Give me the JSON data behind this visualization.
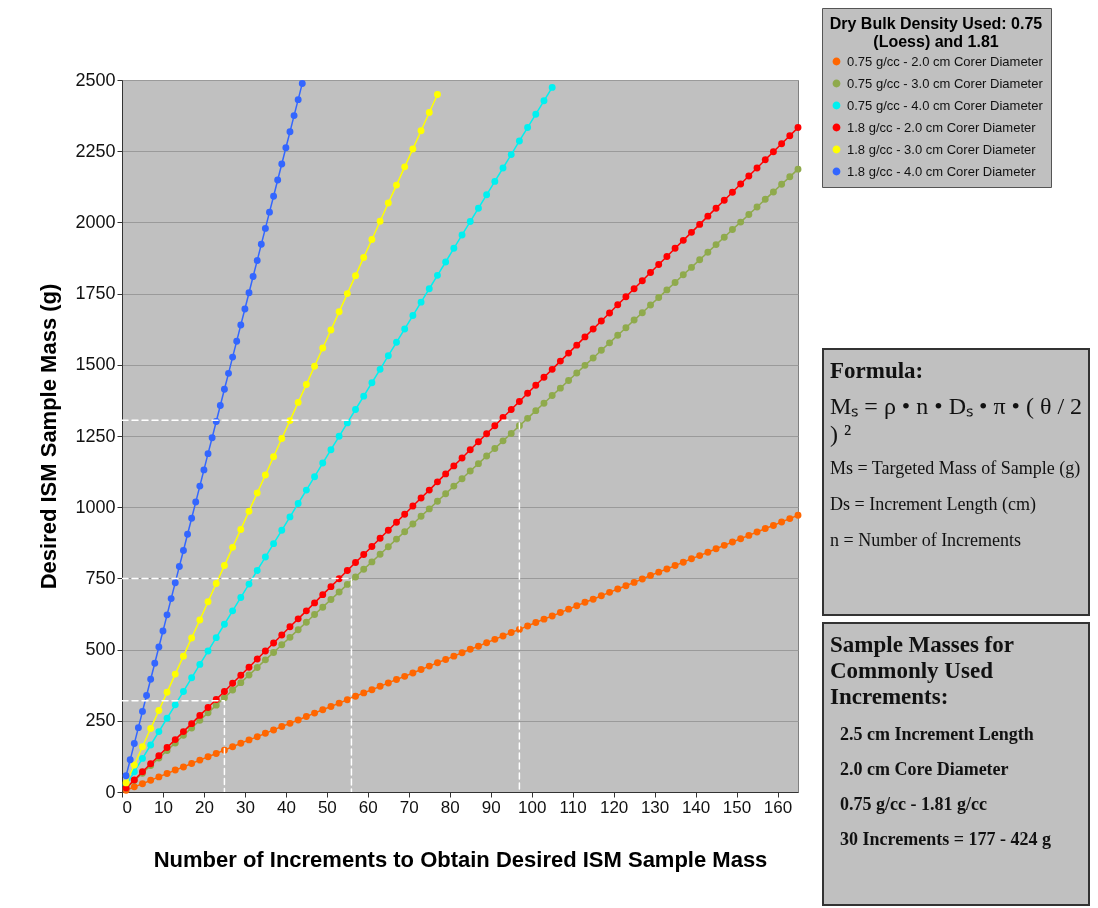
{
  "chart_data": {
    "type": "line",
    "xlabel": "Number of Increments to Obtain Desired ISM Sample Mass",
    "ylabel": "Desired ISM Sample Mass (g)",
    "legend_title": "Dry Bulk Density Used: 0.75 (Loess) and 1.81",
    "xlim": [
      0,
      165
    ],
    "xticks": [
      0,
      10,
      20,
      30,
      40,
      50,
      60,
      70,
      80,
      90,
      100,
      110,
      120,
      130,
      140,
      150,
      160
    ],
    "ylim": [
      0,
      2500
    ],
    "yticks": [
      0,
      250,
      500,
      750,
      1000,
      1250,
      1500,
      1750,
      2000,
      2250,
      2500
    ],
    "grid": "y",
    "legend": "right",
    "line_style": "solid",
    "series": [
      {
        "name": "0.75 g/cc - 2.0 cm Corer Diameter",
        "color": "#ff6600",
        "marker": "circle",
        "x": [
          1,
          3,
          5,
          7,
          9,
          11,
          13,
          15,
          17,
          19,
          21,
          23,
          25,
          27,
          29,
          31,
          33,
          35,
          37,
          39,
          41,
          43,
          45,
          47,
          49,
          51,
          53,
          55,
          57,
          59,
          61,
          63,
          65,
          67,
          69,
          71,
          73,
          75,
          77,
          79,
          81,
          83,
          85,
          87,
          89,
          91,
          93,
          95,
          97,
          99,
          101,
          103,
          105,
          107,
          109,
          111,
          113,
          115,
          117,
          119,
          121,
          123,
          125,
          127,
          129,
          131,
          133,
          135,
          137,
          139,
          141,
          143,
          145,
          147,
          149,
          151,
          153,
          155,
          157,
          159,
          161,
          163,
          165
        ],
        "values": [
          6,
          18,
          29,
          41,
          53,
          65,
          77,
          88,
          100,
          112,
          124,
          135,
          147,
          159,
          171,
          183,
          194,
          206,
          218,
          230,
          241,
          253,
          265,
          277,
          289,
          300,
          312,
          324,
          336,
          348,
          359,
          371,
          383,
          395,
          406,
          418,
          430,
          442,
          454,
          465,
          477,
          489,
          501,
          512,
          524,
          536,
          548,
          560,
          571,
          583,
          595,
          607,
          618,
          630,
          642,
          654,
          666,
          677,
          689,
          701,
          713,
          724,
          736,
          748,
          760,
          772,
          783,
          795,
          807,
          819,
          830,
          842,
          854,
          866,
          878,
          889,
          901,
          913,
          925,
          936,
          948,
          960,
          972
        ]
      },
      {
        "name": "0.75 g/cc - 3.0 cm Corer Diameter",
        "color": "#8faa4c",
        "marker": "circle",
        "x": [
          1,
          3,
          5,
          7,
          9,
          11,
          13,
          15,
          17,
          19,
          21,
          23,
          25,
          27,
          29,
          31,
          33,
          35,
          37,
          39,
          41,
          43,
          45,
          47,
          49,
          51,
          53,
          55,
          57,
          59,
          61,
          63,
          65,
          67,
          69,
          71,
          73,
          75,
          77,
          79,
          81,
          83,
          85,
          87,
          89,
          91,
          93,
          95,
          97,
          99,
          101,
          103,
          105,
          107,
          109,
          111,
          113,
          115,
          117,
          119,
          121,
          123,
          125,
          127,
          129,
          131,
          133,
          135,
          137,
          139,
          141,
          143,
          145,
          147,
          149,
          151,
          153,
          155,
          157,
          159,
          161,
          163,
          165
        ],
        "values": [
          13,
          40,
          66,
          93,
          119,
          146,
          172,
          199,
          225,
          252,
          278,
          305,
          331,
          358,
          384,
          411,
          437,
          464,
          490,
          517,
          543,
          570,
          596,
          623,
          649,
          676,
          702,
          729,
          755,
          782,
          808,
          835,
          861,
          888,
          914,
          941,
          968,
          994,
          1021,
          1047,
          1074,
          1100,
          1127,
          1153,
          1180,
          1206,
          1233,
          1259,
          1286,
          1312,
          1339,
          1365,
          1392,
          1418,
          1445,
          1471,
          1498,
          1524,
          1551,
          1577,
          1604,
          1630,
          1657,
          1683,
          1710,
          1736,
          1763,
          1789,
          1816,
          1842,
          1869,
          1895,
          1922,
          1948,
          1975,
          2001,
          2028,
          2054,
          2081,
          2107,
          2134,
          2160,
          2187
        ]
      },
      {
        "name": "0.75 g/cc - 4.0 cm Corer Diameter",
        "color": "#00f0f0",
        "marker": "circle",
        "x": [
          1,
          3,
          5,
          7,
          9,
          11,
          13,
          15,
          17,
          19,
          21,
          23,
          25,
          27,
          29,
          31,
          33,
          35,
          37,
          39,
          41,
          43,
          45,
          47,
          49,
          51,
          53,
          55,
          57,
          59,
          61,
          63,
          65,
          67,
          69,
          71,
          73,
          75,
          77,
          79,
          81,
          83,
          85,
          87,
          89,
          91,
          93,
          95,
          97,
          99,
          101,
          103,
          105
        ],
        "values": [
          24,
          71,
          118,
          165,
          212,
          259,
          306,
          353,
          401,
          448,
          495,
          542,
          589,
          636,
          683,
          730,
          778,
          825,
          872,
          919,
          966,
          1013,
          1060,
          1107,
          1155,
          1202,
          1249,
          1296,
          1343,
          1390,
          1437,
          1484,
          1532,
          1579,
          1626,
          1673,
          1720,
          1767,
          1814,
          1861,
          1909,
          1956,
          2003,
          2050,
          2097,
          2144,
          2191,
          2238,
          2286,
          2333,
          2380,
          2427,
          2474
        ]
      },
      {
        "name": "1.8 g/cc - 2.0 cm Corer Diameter",
        "color": "#ff0000",
        "marker": "circle",
        "x": [
          1,
          3,
          5,
          7,
          9,
          11,
          13,
          15,
          17,
          19,
          21,
          23,
          25,
          27,
          29,
          31,
          33,
          35,
          37,
          39,
          41,
          43,
          45,
          47,
          49,
          51,
          53,
          55,
          57,
          59,
          61,
          63,
          65,
          67,
          69,
          71,
          73,
          75,
          77,
          79,
          81,
          83,
          85,
          87,
          89,
          91,
          93,
          95,
          97,
          99,
          101,
          103,
          105,
          107,
          109,
          111,
          113,
          115,
          117,
          119,
          121,
          123,
          125,
          127,
          129,
          131,
          133,
          135,
          137,
          139,
          141,
          143,
          145,
          147,
          149,
          151,
          153,
          155,
          157,
          159,
          161,
          163,
          165
        ],
        "values": [
          14,
          42,
          71,
          99,
          127,
          156,
          184,
          212,
          240,
          269,
          297,
          325,
          353,
          382,
          410,
          438,
          467,
          495,
          523,
          551,
          580,
          608,
          636,
          664,
          693,
          721,
          749,
          778,
          806,
          834,
          862,
          891,
          919,
          947,
          975,
          1004,
          1032,
          1060,
          1089,
          1117,
          1145,
          1173,
          1202,
          1230,
          1258,
          1286,
          1315,
          1343,
          1371,
          1400,
          1428,
          1456,
          1484,
          1513,
          1541,
          1569,
          1598,
          1626,
          1654,
          1682,
          1711,
          1739,
          1767,
          1795,
          1824,
          1852,
          1880,
          1909,
          1937,
          1965,
          1993,
          2022,
          2050,
          2078,
          2106,
          2135,
          2163,
          2191,
          2220,
          2248,
          2276,
          2304,
          2333
        ]
      },
      {
        "name": "1.8 g/cc - 3.0 cm Corer Diameter",
        "color": "#ffff00",
        "marker": "circle",
        "x": [
          1,
          3,
          5,
          7,
          9,
          11,
          13,
          15,
          17,
          19,
          21,
          23,
          25,
          27,
          29,
          31,
          33,
          35,
          37,
          39,
          41,
          43,
          45,
          47,
          49,
          51,
          53,
          55,
          57,
          59,
          61,
          63,
          65,
          67,
          69,
          71,
          73,
          75,
          77
        ],
        "values": [
          32,
          95,
          159,
          223,
          286,
          350,
          414,
          477,
          541,
          604,
          668,
          732,
          795,
          859,
          922,
          986,
          1050,
          1113,
          1177,
          1241,
          1304,
          1368,
          1431,
          1495,
          1559,
          1622,
          1686,
          1750,
          1813,
          1877,
          1940,
          2004,
          2068,
          2131,
          2195,
          2258,
          2322,
          2386,
          2449
        ]
      },
      {
        "name": "1.8 g/cc - 4.0 cm Corer Diameter",
        "color": "#3366ff",
        "marker": "circle",
        "x": [
          1,
          2,
          3,
          4,
          5,
          6,
          7,
          8,
          9,
          10,
          11,
          12,
          13,
          14,
          15,
          16,
          17,
          18,
          19,
          20,
          21,
          22,
          23,
          24,
          25,
          26,
          27,
          28,
          29,
          30,
          31,
          32,
          33,
          34,
          35,
          36,
          37,
          38,
          39,
          40,
          41,
          42,
          43,
          44
        ],
        "values": [
          57,
          113,
          170,
          226,
          283,
          339,
          396,
          452,
          509,
          565,
          622,
          679,
          735,
          792,
          848,
          905,
          961,
          1018,
          1074,
          1131,
          1188,
          1244,
          1301,
          1357,
          1414,
          1470,
          1527,
          1583,
          1640,
          1696,
          1753,
          1810,
          1866,
          1923,
          1979,
          2036,
          2092,
          2149,
          2205,
          2262,
          2318,
          2375,
          2431,
          2488
        ]
      },
      {
        "type": "line",
        "color": "#ffffff",
        "line_style": "dashed",
        "marker": "none",
        "x": [
          0,
          25,
          25
        ],
        "values": [
          320,
          320,
          0
        ]
      },
      {
        "type": "line",
        "color": "#ffffff",
        "line_style": "dashed",
        "marker": "none",
        "x": [
          0,
          56,
          56
        ],
        "values": [
          750,
          750,
          0
        ]
      },
      {
        "type": "line",
        "color": "#ffffff",
        "line_style": "dashed",
        "marker": "none",
        "x": [
          0,
          97,
          97
        ],
        "values": [
          1305,
          1305,
          0
        ]
      }
    ],
    "annotations": [
      "Formula:",
      "Mₛ = ρ • n • Dₛ • π • ( θ / 2 ) ²",
      "Ms = Targeted Mass of Sample (g)",
      "Ds = Increment Length (cm)",
      "n = Number of Increments",
      "Sample Masses for Commonly Used Increments:",
      "2.5 cm Increment Length",
      "2.0 cm Core Diameter",
      "0.75 g/cc - 1.81 g/cc",
      "30 Increments = 177 - 424 g"
    ]
  }
}
